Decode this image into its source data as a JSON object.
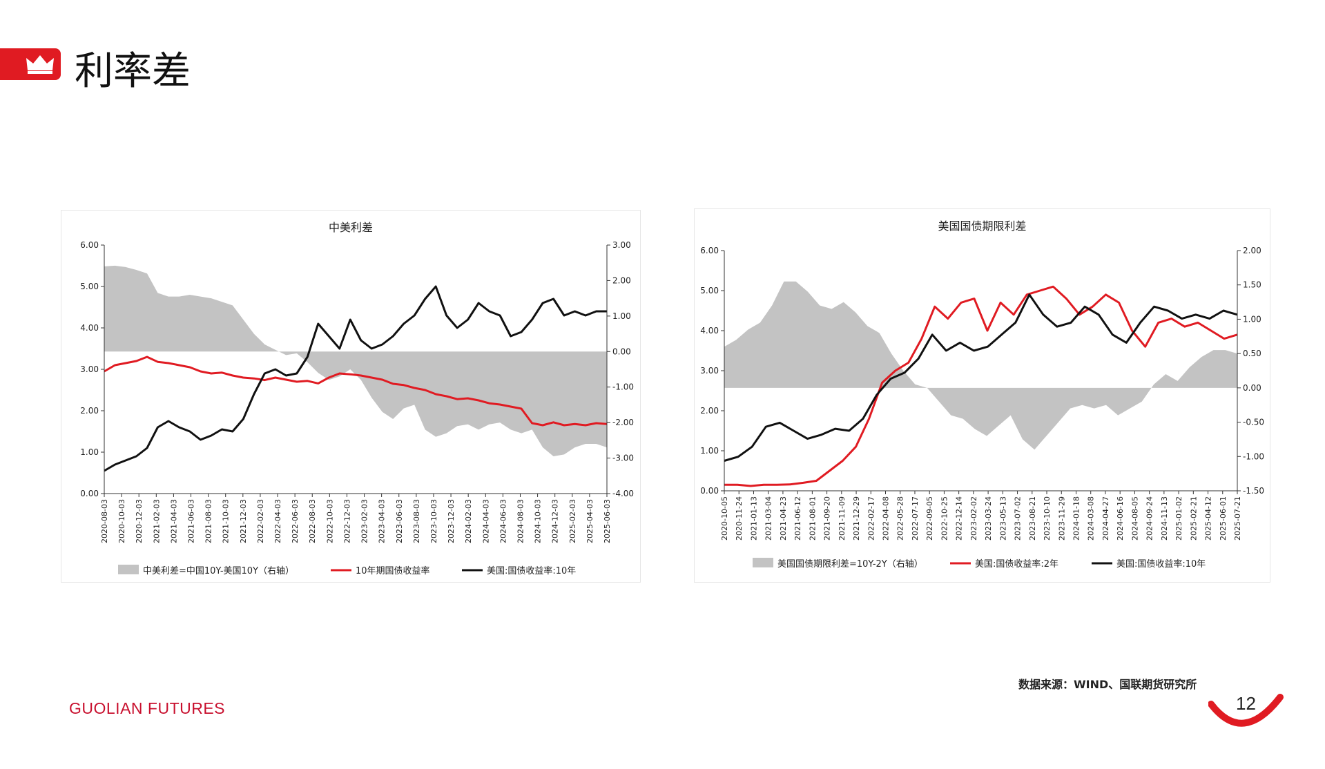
{
  "header": {
    "title": "利率差"
  },
  "footer": {
    "source": "数据来源：WIND、国联期货研究所",
    "logo": "GUOLIAN FUTURES",
    "page_number": "12"
  },
  "colors": {
    "accent": "#e01b22",
    "area": "#c3c3c3",
    "red": "#e01b22",
    "black": "#111111"
  },
  "chart_data": [
    {
      "type": "line",
      "title": "中美利差",
      "x_ticks": [
        "2020-08-03",
        "2020-10-03",
        "2020-12-03",
        "2021-02-03",
        "2021-04-03",
        "2021-06-03",
        "2021-08-03",
        "2021-10-03",
        "2021-12-03",
        "2022-02-03",
        "2022-04-03",
        "2022-06-03",
        "2022-08-03",
        "2022-10-03",
        "2022-12-03",
        "2023-02-03",
        "2023-04-03",
        "2023-06-03",
        "2023-08-03",
        "2023-10-03",
        "2023-12-03",
        "2024-02-03",
        "2024-04-03",
        "2024-06-03",
        "2024-08-03",
        "2024-10-03",
        "2024-12-03",
        "2025-02-03",
        "2025-04-03",
        "2025-06-03"
      ],
      "ylim_left": [
        0,
        6
      ],
      "yticks_left": [
        "0.00",
        "1.00",
        "2.00",
        "3.00",
        "4.00",
        "5.00",
        "6.00"
      ],
      "ylim_right": [
        -4,
        3
      ],
      "yticks_right": [
        "-4.00",
        "-3.00",
        "-2.00",
        "-1.00",
        "0.00",
        "1.00",
        "2.00",
        "3.00"
      ],
      "series": [
        {
          "name": "中美利差=中国10Y-美国10Y（右轴）",
          "kind": "area",
          "axis": "right",
          "values": [
            2.4,
            2.42,
            2.38,
            2.3,
            2.2,
            1.65,
            1.55,
            1.55,
            1.6,
            1.55,
            1.5,
            1.4,
            1.3,
            0.9,
            0.5,
            0.2,
            0.05,
            -0.1,
            -0.05,
            -0.3,
            -0.6,
            -0.8,
            -0.7,
            -0.5,
            -0.8,
            -1.3,
            -1.7,
            -1.9,
            -1.6,
            -1.5,
            -2.2,
            -2.4,
            -2.3,
            -2.1,
            -2.05,
            -2.2,
            -2.05,
            -2.0,
            -2.2,
            -2.3,
            -2.2,
            -2.7,
            -2.95,
            -2.9,
            -2.7,
            -2.6,
            -2.6,
            -2.7
          ]
        },
        {
          "name": "10年期国债收益率",
          "kind": "line",
          "axis": "left",
          "color": "#e01b22",
          "values": [
            2.95,
            3.1,
            3.15,
            3.2,
            3.3,
            3.18,
            3.15,
            3.1,
            3.05,
            2.95,
            2.9,
            2.92,
            2.85,
            2.8,
            2.78,
            2.74,
            2.8,
            2.75,
            2.7,
            2.72,
            2.66,
            2.8,
            2.9,
            2.88,
            2.85,
            2.8,
            2.75,
            2.65,
            2.62,
            2.55,
            2.5,
            2.4,
            2.35,
            2.28,
            2.3,
            2.25,
            2.18,
            2.15,
            2.1,
            2.05,
            1.7,
            1.65,
            1.72,
            1.65,
            1.68,
            1.65,
            1.7,
            1.68
          ]
        },
        {
          "name": "美国:国债收益率:10年",
          "kind": "line",
          "axis": "left",
          "color": "#111111",
          "values": [
            0.55,
            0.7,
            0.8,
            0.9,
            1.1,
            1.6,
            1.75,
            1.6,
            1.5,
            1.3,
            1.4,
            1.55,
            1.5,
            1.8,
            2.4,
            2.9,
            3.0,
            2.85,
            2.9,
            3.3,
            4.1,
            3.8,
            3.5,
            4.2,
            3.7,
            3.5,
            3.6,
            3.8,
            4.1,
            4.3,
            4.7,
            5.0,
            4.3,
            4.0,
            4.2,
            4.6,
            4.4,
            4.3,
            3.8,
            3.9,
            4.2,
            4.6,
            4.7,
            4.3,
            4.4,
            4.3,
            4.4,
            4.4
          ]
        }
      ],
      "legend": [
        "中美利差=中国10Y-美国10Y（右轴）",
        "10年期国债收益率",
        "美国:国债收益率:10年"
      ]
    },
    {
      "type": "line",
      "title": "美国国债期限利差",
      "x_ticks": [
        "2020-10-05",
        "2020-11-24",
        "2021-01-13",
        "2021-03-04",
        "2021-04-23",
        "2021-06-12",
        "2021-08-01",
        "2021-09-20",
        "2021-11-09",
        "2021-12-29",
        "2022-02-17",
        "2022-04-08",
        "2022-05-28",
        "2022-07-17",
        "2022-09-05",
        "2022-10-25",
        "2022-12-14",
        "2023-02-02",
        "2023-03-24",
        "2023-05-13",
        "2023-07-02",
        "2023-08-21",
        "2023-10-10",
        "2023-11-29",
        "2024-01-18",
        "2024-03-08",
        "2024-04-27",
        "2024-06-16",
        "2024-08-05",
        "2024-09-24",
        "2024-11-13",
        "2025-01-02",
        "2025-02-21",
        "2025-04-12",
        "2025-06-01",
        "2025-07-21"
      ],
      "ylim_left": [
        0,
        6
      ],
      "yticks_left": [
        "0.00",
        "1.00",
        "2.00",
        "3.00",
        "4.00",
        "5.00",
        "6.00"
      ],
      "ylim_right": [
        -1.5,
        2
      ],
      "yticks_right": [
        "-1.50",
        "-1.00",
        "-0.50",
        "0.00",
        "0.50",
        "1.00",
        "1.50",
        "2.00"
      ],
      "series": [
        {
          "name": "美国国债期限利差=10Y-2Y（右轴）",
          "kind": "area",
          "axis": "right",
          "values": [
            0.6,
            0.7,
            0.85,
            0.95,
            1.2,
            1.55,
            1.55,
            1.4,
            1.2,
            1.15,
            1.25,
            1.1,
            0.9,
            0.8,
            0.5,
            0.25,
            0.05,
            0.0,
            -0.2,
            -0.4,
            -0.45,
            -0.6,
            -0.7,
            -0.55,
            -0.4,
            -0.75,
            -0.9,
            -0.7,
            -0.5,
            -0.3,
            -0.25,
            -0.3,
            -0.25,
            -0.4,
            -0.3,
            -0.2,
            0.05,
            0.2,
            0.1,
            0.3,
            0.45,
            0.55,
            0.55,
            0.5
          ]
        },
        {
          "name": "美国:国债收益率:2年",
          "kind": "line",
          "axis": "left",
          "color": "#e01b22",
          "values": [
            0.15,
            0.15,
            0.12,
            0.15,
            0.15,
            0.16,
            0.2,
            0.25,
            0.5,
            0.75,
            1.1,
            1.8,
            2.7,
            3.0,
            3.2,
            3.8,
            4.6,
            4.3,
            4.7,
            4.8,
            4.0,
            4.7,
            4.4,
            4.9,
            5.0,
            5.1,
            4.8,
            4.4,
            4.6,
            4.9,
            4.7,
            4.0,
            3.6,
            4.2,
            4.3,
            4.1,
            4.2,
            4.0,
            3.8,
            3.9
          ]
        },
        {
          "name": "美国:国债收益率:10年",
          "kind": "line",
          "axis": "left",
          "color": "#111111",
          "values": [
            0.75,
            0.85,
            1.1,
            1.6,
            1.7,
            1.5,
            1.3,
            1.4,
            1.55,
            1.5,
            1.8,
            2.4,
            2.8,
            2.95,
            3.3,
            3.9,
            3.5,
            3.7,
            3.5,
            3.6,
            3.9,
            4.2,
            4.9,
            4.4,
            4.1,
            4.2,
            4.6,
            4.4,
            3.9,
            3.7,
            4.2,
            4.6,
            4.5,
            4.3,
            4.4,
            4.3,
            4.5,
            4.4
          ]
        }
      ],
      "legend": [
        "美国国债期限利差=10Y-2Y（右轴）",
        "美国:国债收益率:2年",
        "美国:国债收益率:10年"
      ]
    }
  ]
}
